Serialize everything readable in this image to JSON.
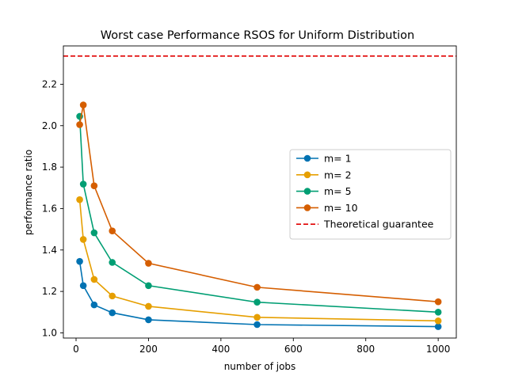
{
  "chart_data": {
    "type": "line",
    "title": "Worst case Performance RSOS for Uniform Distribution",
    "xlabel": "number of jobs",
    "ylabel": "performance ratio",
    "xlim": [
      -35,
      1050
    ],
    "ylim": [
      0.975,
      2.385
    ],
    "xticks": [
      0,
      200,
      400,
      600,
      800,
      1000
    ],
    "xtick_labels": [
      "0",
      "200",
      "400",
      "600",
      "800",
      "1000"
    ],
    "yticks": [
      1.0,
      1.2,
      1.4,
      1.6,
      1.8,
      2.0,
      2.2
    ],
    "ytick_labels": [
      "1.0",
      "1.2",
      "1.4",
      "1.6",
      "1.8",
      "2.0",
      "2.2"
    ],
    "x": [
      10,
      20,
      50,
      100,
      200,
      500,
      1000
    ],
    "series": [
      {
        "name": "m= 1",
        "color": "#0072b2",
        "values": [
          1.345,
          1.228,
          1.135,
          1.097,
          1.063,
          1.04,
          1.03
        ]
      },
      {
        "name": "m= 2",
        "color": "#e69f00",
        "values": [
          1.643,
          1.451,
          1.258,
          1.178,
          1.128,
          1.075,
          1.058
        ]
      },
      {
        "name": "m= 5",
        "color": "#009e73",
        "values": [
          2.045,
          1.718,
          1.483,
          1.34,
          1.228,
          1.148,
          1.1
        ]
      },
      {
        "name": "m= 10",
        "color": "#d55e00",
        "values": [
          2.005,
          2.1,
          1.71,
          1.492,
          1.336,
          1.22,
          1.15
        ]
      }
    ],
    "reference_line": {
      "name": "Theoretical guarantee",
      "y": 2.336,
      "color": "#e00000",
      "style": "dashed"
    },
    "grid": false,
    "legend_position": "center-right"
  }
}
